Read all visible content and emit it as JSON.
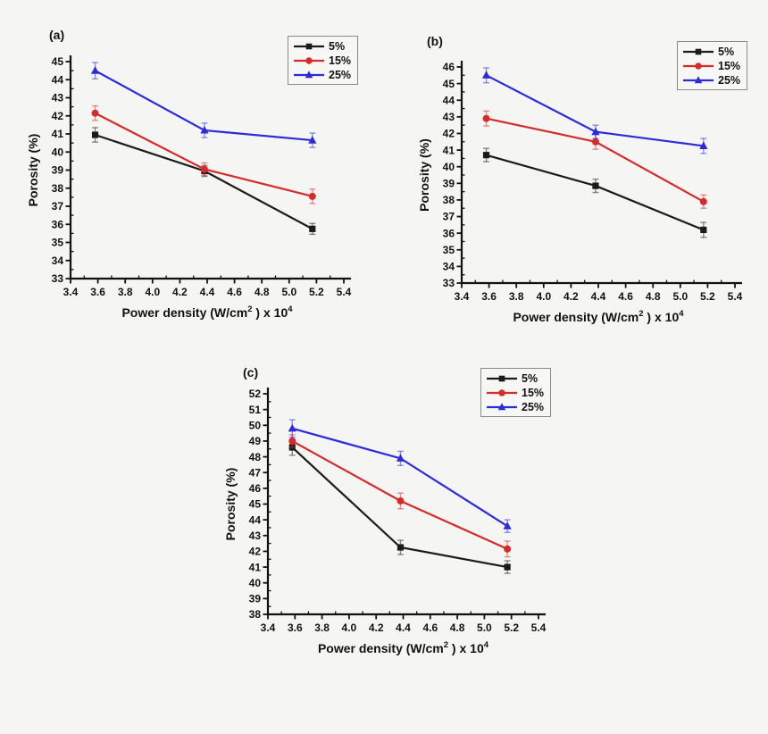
{
  "page": {
    "background": "#f5f5f3"
  },
  "chart_data": [
    {
      "id": "a",
      "type": "line",
      "panel_label": "(a)",
      "ylabel": "Porosity (%)",
      "xlabel_parts": [
        "Power density (W/cm",
        {
          "sup": "2"
        },
        " ) x 10",
        {
          "sup": "4"
        }
      ],
      "xlim": [
        3.4,
        5.4
      ],
      "ylim": [
        33,
        45
      ],
      "xtick_labels": [
        "3.4",
        "3.6",
        "3.8",
        "4.0",
        "4.2",
        "4.4",
        "4.6",
        "4.8",
        "5.0",
        "5.2",
        "5.4"
      ],
      "ytick_labels": [
        "33",
        "34",
        "35",
        "36",
        "37",
        "38",
        "39",
        "40",
        "41",
        "42",
        "43",
        "44",
        "45"
      ],
      "x": [
        3.58,
        4.38,
        5.17
      ],
      "legend_position": "top-right",
      "grid": false,
      "series": [
        {
          "name": "5%",
          "marker": "square",
          "color": "#1b1b1b",
          "values": [
            40.95,
            38.95,
            35.75
          ],
          "errors": [
            0.4,
            0.3,
            0.3
          ]
        },
        {
          "name": "15%",
          "marker": "circle",
          "color": "#d62b2b",
          "values": [
            42.15,
            39.05,
            37.55
          ],
          "errors": [
            0.4,
            0.35,
            0.4
          ]
        },
        {
          "name": "25%",
          "marker": "triangle",
          "color": "#2b2bdb",
          "values": [
            44.5,
            41.2,
            40.65
          ],
          "errors": [
            0.45,
            0.4,
            0.4
          ]
        }
      ]
    },
    {
      "id": "b",
      "type": "line",
      "panel_label": "(b)",
      "ylabel": "Porosity (%)",
      "xlabel_parts": [
        "Power density (W/cm",
        {
          "sup": "2"
        },
        " ) x 10",
        {
          "sup": "4"
        }
      ],
      "xlim": [
        3.4,
        5.4
      ],
      "ylim": [
        33,
        46
      ],
      "xtick_labels": [
        "3.4",
        "3.6",
        "3.8",
        "4.0",
        "4.2",
        "4.4",
        "4.6",
        "4.8",
        "5.0",
        "5.2",
        "5.4"
      ],
      "ytick_labels": [
        "33",
        "34",
        "35",
        "36",
        "37",
        "38",
        "39",
        "40",
        "41",
        "42",
        "43",
        "44",
        "45",
        "46"
      ],
      "x": [
        3.58,
        4.38,
        5.17
      ],
      "legend_position": "top-right",
      "grid": false,
      "series": [
        {
          "name": "5%",
          "marker": "square",
          "color": "#1b1b1b",
          "values": [
            40.7,
            38.85,
            36.2
          ],
          "errors": [
            0.4,
            0.4,
            0.45
          ]
        },
        {
          "name": "15%",
          "marker": "circle",
          "color": "#d62b2b",
          "values": [
            42.9,
            41.5,
            37.9
          ],
          "errors": [
            0.45,
            0.45,
            0.4
          ]
        },
        {
          "name": "25%",
          "marker": "triangle",
          "color": "#2b2bdb",
          "values": [
            45.5,
            42.1,
            41.25
          ],
          "errors": [
            0.45,
            0.4,
            0.45
          ]
        }
      ]
    },
    {
      "id": "c",
      "type": "line",
      "panel_label": "(c)",
      "ylabel": "Porosity (%)",
      "xlabel_parts": [
        "Power density (W/cm",
        {
          "sup": "2"
        },
        " ) x 10",
        {
          "sup": "4"
        }
      ],
      "xlim": [
        3.4,
        5.4
      ],
      "ylim": [
        38,
        52
      ],
      "xtick_labels": [
        "3.4",
        "3.6",
        "3.8",
        "4.0",
        "4.2",
        "4.4",
        "4.6",
        "4.8",
        "5.0",
        "5.2",
        "5.4"
      ],
      "ytick_labels": [
        "38",
        "39",
        "40",
        "41",
        "42",
        "43",
        "44",
        "45",
        "46",
        "47",
        "48",
        "49",
        "50",
        "51",
        "52"
      ],
      "x": [
        3.58,
        4.38,
        5.17
      ],
      "legend_position": "top-right",
      "grid": false,
      "series": [
        {
          "name": "5%",
          "marker": "square",
          "color": "#1b1b1b",
          "values": [
            48.6,
            42.25,
            41.0
          ],
          "errors": [
            0.5,
            0.45,
            0.4
          ]
        },
        {
          "name": "15%",
          "marker": "circle",
          "color": "#d62b2b",
          "values": [
            49.0,
            45.2,
            42.15
          ],
          "errors": [
            0.4,
            0.5,
            0.5
          ]
        },
        {
          "name": "25%",
          "marker": "triangle",
          "color": "#2b2bdb",
          "values": [
            49.8,
            47.9,
            43.6
          ],
          "errors": [
            0.55,
            0.45,
            0.4
          ]
        }
      ]
    }
  ]
}
